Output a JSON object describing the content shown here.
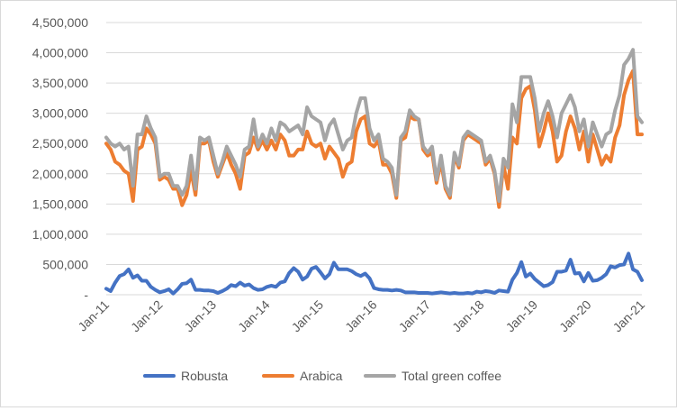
{
  "chart_data": {
    "type": "line",
    "title": "",
    "xlabel": "",
    "ylabel": "",
    "ylim": [
      0,
      4500000
    ],
    "y_ticks": [
      0,
      500000,
      1000000,
      1500000,
      2000000,
      2500000,
      3000000,
      3500000,
      4000000,
      4500000
    ],
    "y_tick_labels": [
      "-",
      "500,000",
      "1,000,000",
      "1,500,000",
      "2,000,000",
      "2,500,000",
      "3,000,000",
      "3,500,000",
      "4,000,000",
      "4,500,000"
    ],
    "x_range": [
      "2011-01",
      "2021-01"
    ],
    "x_ticks": [
      "2011-01",
      "2012-01",
      "2013-01",
      "2014-01",
      "2015-01",
      "2016-01",
      "2017-01",
      "2018-01",
      "2019-01",
      "2020-01",
      "2021-01"
    ],
    "x_tick_labels": [
      "Jan-11",
      "Jan-12",
      "Jan-13",
      "Jan-14",
      "Jan-15",
      "Jan-16",
      "Jan-17",
      "Jan-18",
      "Jan-19",
      "Jan-20",
      "Jan-21"
    ],
    "grid": "horizontal",
    "legend": "bottom",
    "series": [
      {
        "name": "Robusta",
        "color": "#4472C4",
        "values": [
          100000,
          60000,
          200000,
          310000,
          340000,
          420000,
          280000,
          320000,
          230000,
          230000,
          130000,
          80000,
          40000,
          60000,
          90000,
          20000,
          90000,
          180000,
          190000,
          250000,
          80000,
          80000,
          70000,
          70000,
          60000,
          30000,
          60000,
          100000,
          160000,
          140000,
          200000,
          150000,
          170000,
          110000,
          80000,
          90000,
          130000,
          150000,
          130000,
          200000,
          220000,
          360000,
          440000,
          380000,
          250000,
          300000,
          430000,
          460000,
          370000,
          270000,
          340000,
          530000,
          420000,
          420000,
          420000,
          390000,
          340000,
          310000,
          350000,
          270000,
          110000,
          90000,
          80000,
          80000,
          70000,
          80000,
          70000,
          40000,
          40000,
          40000,
          30000,
          30000,
          30000,
          20000,
          30000,
          40000,
          30000,
          20000,
          30000,
          20000,
          20000,
          30000,
          20000,
          50000,
          40000,
          60000,
          50000,
          30000,
          70000,
          60000,
          50000,
          250000,
          360000,
          540000,
          300000,
          350000,
          260000,
          200000,
          140000,
          160000,
          210000,
          380000,
          380000,
          400000,
          580000,
          350000,
          360000,
          220000,
          360000,
          230000,
          240000,
          280000,
          340000,
          470000,
          450000,
          490000,
          500000,
          680000,
          420000,
          380000,
          240000
        ],
        "label_style": "none"
      },
      {
        "name": "Arabica",
        "color": "#ED7D31",
        "values": [
          2500000,
          2400000,
          2200000,
          2150000,
          2050000,
          2000000,
          1550000,
          2400000,
          2450000,
          2750000,
          2650000,
          2500000,
          1900000,
          1950000,
          1900000,
          1750000,
          1750000,
          1480000,
          1650000,
          2050000,
          1650000,
          2500000,
          2500000,
          2550000,
          2200000,
          1950000,
          2150000,
          2350000,
          2150000,
          2000000,
          1750000,
          2300000,
          2350000,
          2600000,
          2400000,
          2550000,
          2400000,
          2550000,
          2400000,
          2650000,
          2550000,
          2300000,
          2300000,
          2400000,
          2400000,
          2700000,
          2500000,
          2450000,
          2500000,
          2250000,
          2450000,
          2350000,
          2250000,
          1950000,
          2150000,
          2200000,
          2700000,
          2900000,
          2950000,
          2500000,
          2450000,
          2550000,
          2150000,
          2150000,
          2000000,
          1600000,
          2550000,
          2600000,
          2950000,
          2900000,
          2900000,
          2400000,
          2300000,
          2350000,
          1850000,
          2200000,
          1750000,
          1600000,
          2300000,
          2100000,
          2550000,
          2650000,
          2600000,
          2550000,
          2500000,
          2150000,
          2250000,
          2000000,
          1450000,
          2150000,
          1750000,
          2600000,
          2500000,
          3250000,
          3400000,
          3450000,
          3050000,
          2450000,
          2700000,
          3000000,
          2700000,
          2200000,
          2300000,
          2700000,
          2950000,
          2750000,
          2400000,
          2700000,
          2200000,
          2650000,
          2400000,
          2150000,
          2300000,
          2200000,
          2600000,
          2800000,
          3300000,
          3550000,
          3700000,
          2650000,
          2650000
        ]
      },
      {
        "name": "Total green coffee",
        "color": "#A5A5A5",
        "values": [
          2600000,
          2500000,
          2450000,
          2500000,
          2400000,
          2450000,
          1800000,
          2650000,
          2650000,
          2950000,
          2750000,
          2600000,
          1950000,
          2000000,
          2000000,
          1800000,
          1800000,
          1650000,
          1800000,
          2300000,
          1750000,
          2600000,
          2550000,
          2600000,
          2300000,
          2000000,
          2200000,
          2450000,
          2300000,
          2150000,
          1950000,
          2400000,
          2450000,
          2900000,
          2450000,
          2650000,
          2500000,
          2750000,
          2550000,
          2850000,
          2800000,
          2700000,
          2750000,
          2800000,
          2650000,
          3100000,
          2950000,
          2900000,
          2850000,
          2550000,
          2800000,
          2900000,
          2650000,
          2400000,
          2550000,
          2600000,
          3000000,
          3250000,
          3250000,
          2750000,
          2550000,
          2650000,
          2250000,
          2200000,
          2100000,
          1650000,
          2600000,
          2700000,
          3050000,
          2950000,
          2900000,
          2450000,
          2350000,
          2450000,
          1900000,
          2300000,
          1800000,
          1650000,
          2350000,
          2150000,
          2600000,
          2700000,
          2650000,
          2600000,
          2550000,
          2200000,
          2300000,
          2050000,
          1550000,
          2250000,
          2100000,
          3150000,
          2850000,
          3600000,
          3600000,
          3600000,
          3250000,
          2700000,
          3000000,
          3200000,
          2950000,
          2600000,
          3000000,
          3150000,
          3300000,
          3100000,
          2700000,
          2900000,
          2450000,
          2850000,
          2650000,
          2450000,
          2650000,
          2700000,
          3050000,
          3300000,
          3800000,
          3900000,
          4050000,
          2950000,
          2850000
        ]
      }
    ]
  }
}
